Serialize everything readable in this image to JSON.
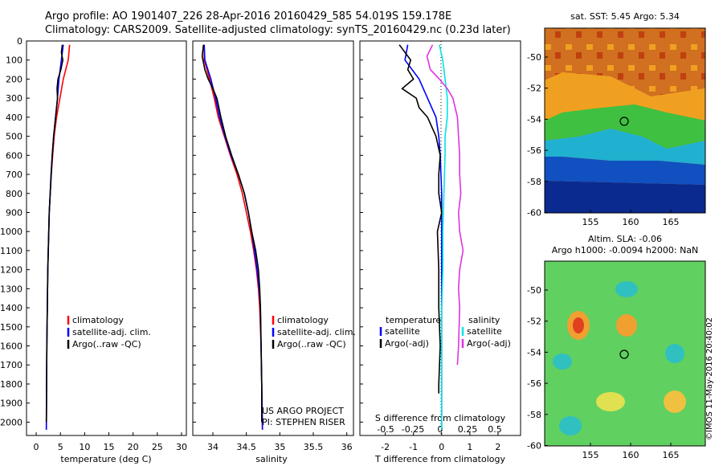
{
  "header": {
    "line1": "Argo profile: AO 1901407_226 28-Apr-2016 20160429_585 54.019S 159.178E",
    "line2": "Climatology: CARS2009. Satellite-adjusted climatology: synTS_20160429.nc (0.23d later)"
  },
  "colors": {
    "climatology": "#ff0000",
    "satellite": "#0000ff",
    "argo": "#000000",
    "salinity_satellite": "#00e5e5",
    "salinity_argo": "#e033e0"
  },
  "chart_data": [
    {
      "type": "line",
      "id": "temperature",
      "xlabel": "temperature (deg C)",
      "ylabel": "",
      "xlim": [
        -2,
        31
      ],
      "ylim": [
        0,
        2070
      ],
      "y_reversed": true,
      "xticks": [
        "0",
        "5",
        "10",
        "15",
        "20",
        "25",
        "30"
      ],
      "yticks": [
        "0",
        "100",
        "200",
        "300",
        "400",
        "500",
        "600",
        "700",
        "800",
        "900",
        "1000",
        "1100",
        "1200",
        "1300",
        "1400",
        "1500",
        "1600",
        "1700",
        "1800",
        "1900",
        "2000"
      ],
      "legend": [
        "climatology",
        "satellite-adj. clim.",
        "Argo(..raw -QC)"
      ],
      "series": [
        {
          "name": "climatology",
          "y": [
            20,
            100,
            200,
            300,
            400,
            500,
            600,
            700,
            800,
            900,
            1000,
            1200,
            1400,
            1600,
            1800,
            2040
          ],
          "values": [
            6.9,
            6.6,
            5.6,
            4.9,
            4.2,
            3.7,
            3.4,
            3.1,
            2.9,
            2.7,
            2.6,
            2.4,
            2.3,
            2.2,
            2.15,
            2.1
          ]
        },
        {
          "name": "satellite-adj. clim.",
          "y": [
            20,
            100,
            200,
            300,
            400,
            500,
            600,
            700,
            800,
            900,
            1000,
            1200,
            1400,
            1600,
            1800,
            2040
          ],
          "values": [
            5.6,
            5.2,
            4.7,
            4.4,
            4.0,
            3.6,
            3.3,
            3.05,
            2.9,
            2.7,
            2.6,
            2.4,
            2.3,
            2.2,
            2.15,
            2.1
          ]
        },
        {
          "name": "Argo(..raw -QC)",
          "y": [
            20,
            60,
            100,
            150,
            200,
            250,
            300,
            400,
            500,
            600,
            700,
            800,
            900,
            1000,
            1200,
            1400,
            1600,
            1800,
            2000
          ],
          "values": [
            5.4,
            5.2,
            5.5,
            5.1,
            4.5,
            4.3,
            4.4,
            4.0,
            3.6,
            3.3,
            3.1,
            2.9,
            2.7,
            2.6,
            2.4,
            2.3,
            2.2,
            2.15,
            2.1
          ]
        }
      ]
    },
    {
      "type": "line",
      "id": "salinity",
      "xlabel": "salinity",
      "ylabel": "",
      "xlim": [
        33.7,
        36.1
      ],
      "ylim": [
        0,
        2070
      ],
      "y_reversed": true,
      "xticks": [
        "34",
        "34.5",
        "35",
        "35.5",
        "36"
      ],
      "legend": [
        "climatology",
        "satellite-adj. clim.",
        "Argo(..raw -QC)"
      ],
      "annotation": [
        "US ARGO PROJECT",
        "PI: STEPHEN RISER"
      ],
      "series": [
        {
          "name": "climatology",
          "y": [
            20,
            100,
            200,
            300,
            400,
            500,
            600,
            700,
            800,
            900,
            1000,
            1100,
            1200,
            1300,
            1400,
            1600,
            1800,
            2040
          ],
          "values": [
            33.87,
            33.87,
            33.95,
            34.02,
            34.08,
            34.17,
            34.26,
            34.36,
            34.44,
            34.5,
            34.56,
            34.61,
            34.65,
            34.68,
            34.7,
            34.72,
            34.73,
            34.74
          ]
        },
        {
          "name": "satellite-adj. clim.",
          "y": [
            20,
            100,
            200,
            300,
            400,
            500,
            600,
            700,
            800,
            900,
            1000,
            1100,
            1200,
            1300,
            1400,
            1600,
            1800,
            2040
          ],
          "values": [
            33.87,
            33.88,
            33.97,
            34.04,
            34.1,
            34.18,
            34.27,
            34.38,
            34.47,
            34.53,
            34.58,
            34.62,
            34.66,
            34.69,
            34.71,
            34.72,
            34.73,
            34.74
          ]
        },
        {
          "name": "Argo(..raw -QC)",
          "y": [
            20,
            80,
            150,
            200,
            250,
            300,
            350,
            400,
            500,
            600,
            700,
            800,
            900,
            1000,
            1100,
            1200,
            1300,
            1400,
            1600,
            1800,
            2000
          ],
          "values": [
            33.86,
            33.84,
            33.88,
            33.93,
            34.0,
            34.06,
            34.09,
            34.12,
            34.19,
            34.28,
            34.38,
            34.47,
            34.53,
            34.58,
            34.64,
            34.68,
            34.7,
            34.71,
            34.72,
            34.73,
            34.73
          ]
        }
      ]
    },
    {
      "type": "line",
      "id": "difference",
      "xlabel": "T difference from climatology",
      "xlabel_top": "S difference from climatology",
      "xlim": [
        -2.9,
        2.8
      ],
      "ylim": [
        0,
        2070
      ],
      "y_reversed": true,
      "xticks": [
        "-2",
        "-1",
        "0",
        "1",
        "2"
      ],
      "xticks_salinity": [
        "-0.5",
        "-0.25",
        "0",
        "0.25",
        "0.5"
      ],
      "legend_t_header": "temperature",
      "legend_s_header": "salinity",
      "legend": [
        "satellite",
        "Argo(-adj)",
        "satellite",
        "Argo(-adj)"
      ],
      "series": [
        {
          "name": "temperature satellite",
          "y": [
            20,
            100,
            200,
            300,
            400,
            500,
            600,
            800,
            1000,
            1400,
            1800,
            2040
          ],
          "values": [
            -1.2,
            -1.3,
            -0.8,
            -0.5,
            -0.2,
            -0.1,
            -0.05,
            0,
            0,
            0,
            0,
            0
          ]
        },
        {
          "name": "temperature Argo(-adj)",
          "y": [
            20,
            60,
            100,
            150,
            200,
            250,
            300,
            350,
            400,
            500,
            600,
            700,
            800,
            900,
            1000,
            1200,
            1400,
            1600,
            1800,
            1850
          ],
          "values": [
            -1.5,
            -1.3,
            -1.1,
            -1.2,
            -1.0,
            -1.4,
            -0.9,
            -0.8,
            -0.5,
            -0.2,
            -0.05,
            -0.1,
            -0.1,
            0,
            -0.15,
            -0.1,
            -0.1,
            -0.05,
            -0.1,
            -0.1
          ]
        },
        {
          "name": "salinity satellite",
          "y": [
            20,
            100,
            200,
            300,
            400,
            500,
            600,
            800,
            1000,
            1200,
            1400,
            1600,
            1800,
            2040
          ],
          "values": [
            -0.02,
            0.01,
            0.03,
            0.05,
            0.05,
            0.03,
            0.03,
            0.02,
            0.01,
            0.01,
            0.0,
            0.0,
            0.0,
            0.0
          ]
        },
        {
          "name": "salinity Argo(-adj)",
          "y": [
            20,
            80,
            150,
            200,
            250,
            300,
            400,
            500,
            600,
            700,
            800,
            900,
            1000,
            1100,
            1200,
            1300,
            1400,
            1600,
            1700
          ],
          "values": [
            -0.08,
            -0.13,
            -0.1,
            -0.02,
            0.05,
            0.1,
            0.14,
            0.15,
            0.16,
            0.16,
            0.17,
            0.15,
            0.16,
            0.19,
            0.16,
            0.15,
            0.16,
            0.15,
            0.14
          ]
        }
      ]
    },
    {
      "type": "heatmap",
      "id": "sst_map",
      "title": "sat. SST: 5.45 Argo: 5.34",
      "xticks": [
        "155",
        "160",
        "165"
      ],
      "yticks": [
        "-50",
        "-52",
        "-54",
        "-56",
        "-58",
        "-60"
      ],
      "marker": {
        "lon": 159.178,
        "lat": -54.019
      }
    },
    {
      "type": "heatmap",
      "id": "sla_map",
      "title": "Altim. SLA: -0.06",
      "subtitle": "Argo h1000: -0.0094 h2000: NaN",
      "xticks": [
        "155",
        "160",
        "165"
      ],
      "yticks": [
        "-50",
        "-52",
        "-54",
        "-56",
        "-58",
        "-60"
      ],
      "marker": {
        "lon": 159.178,
        "lat": -54.019
      }
    }
  ],
  "stamp": "©IMOS 11-May-2016 20:40:02"
}
